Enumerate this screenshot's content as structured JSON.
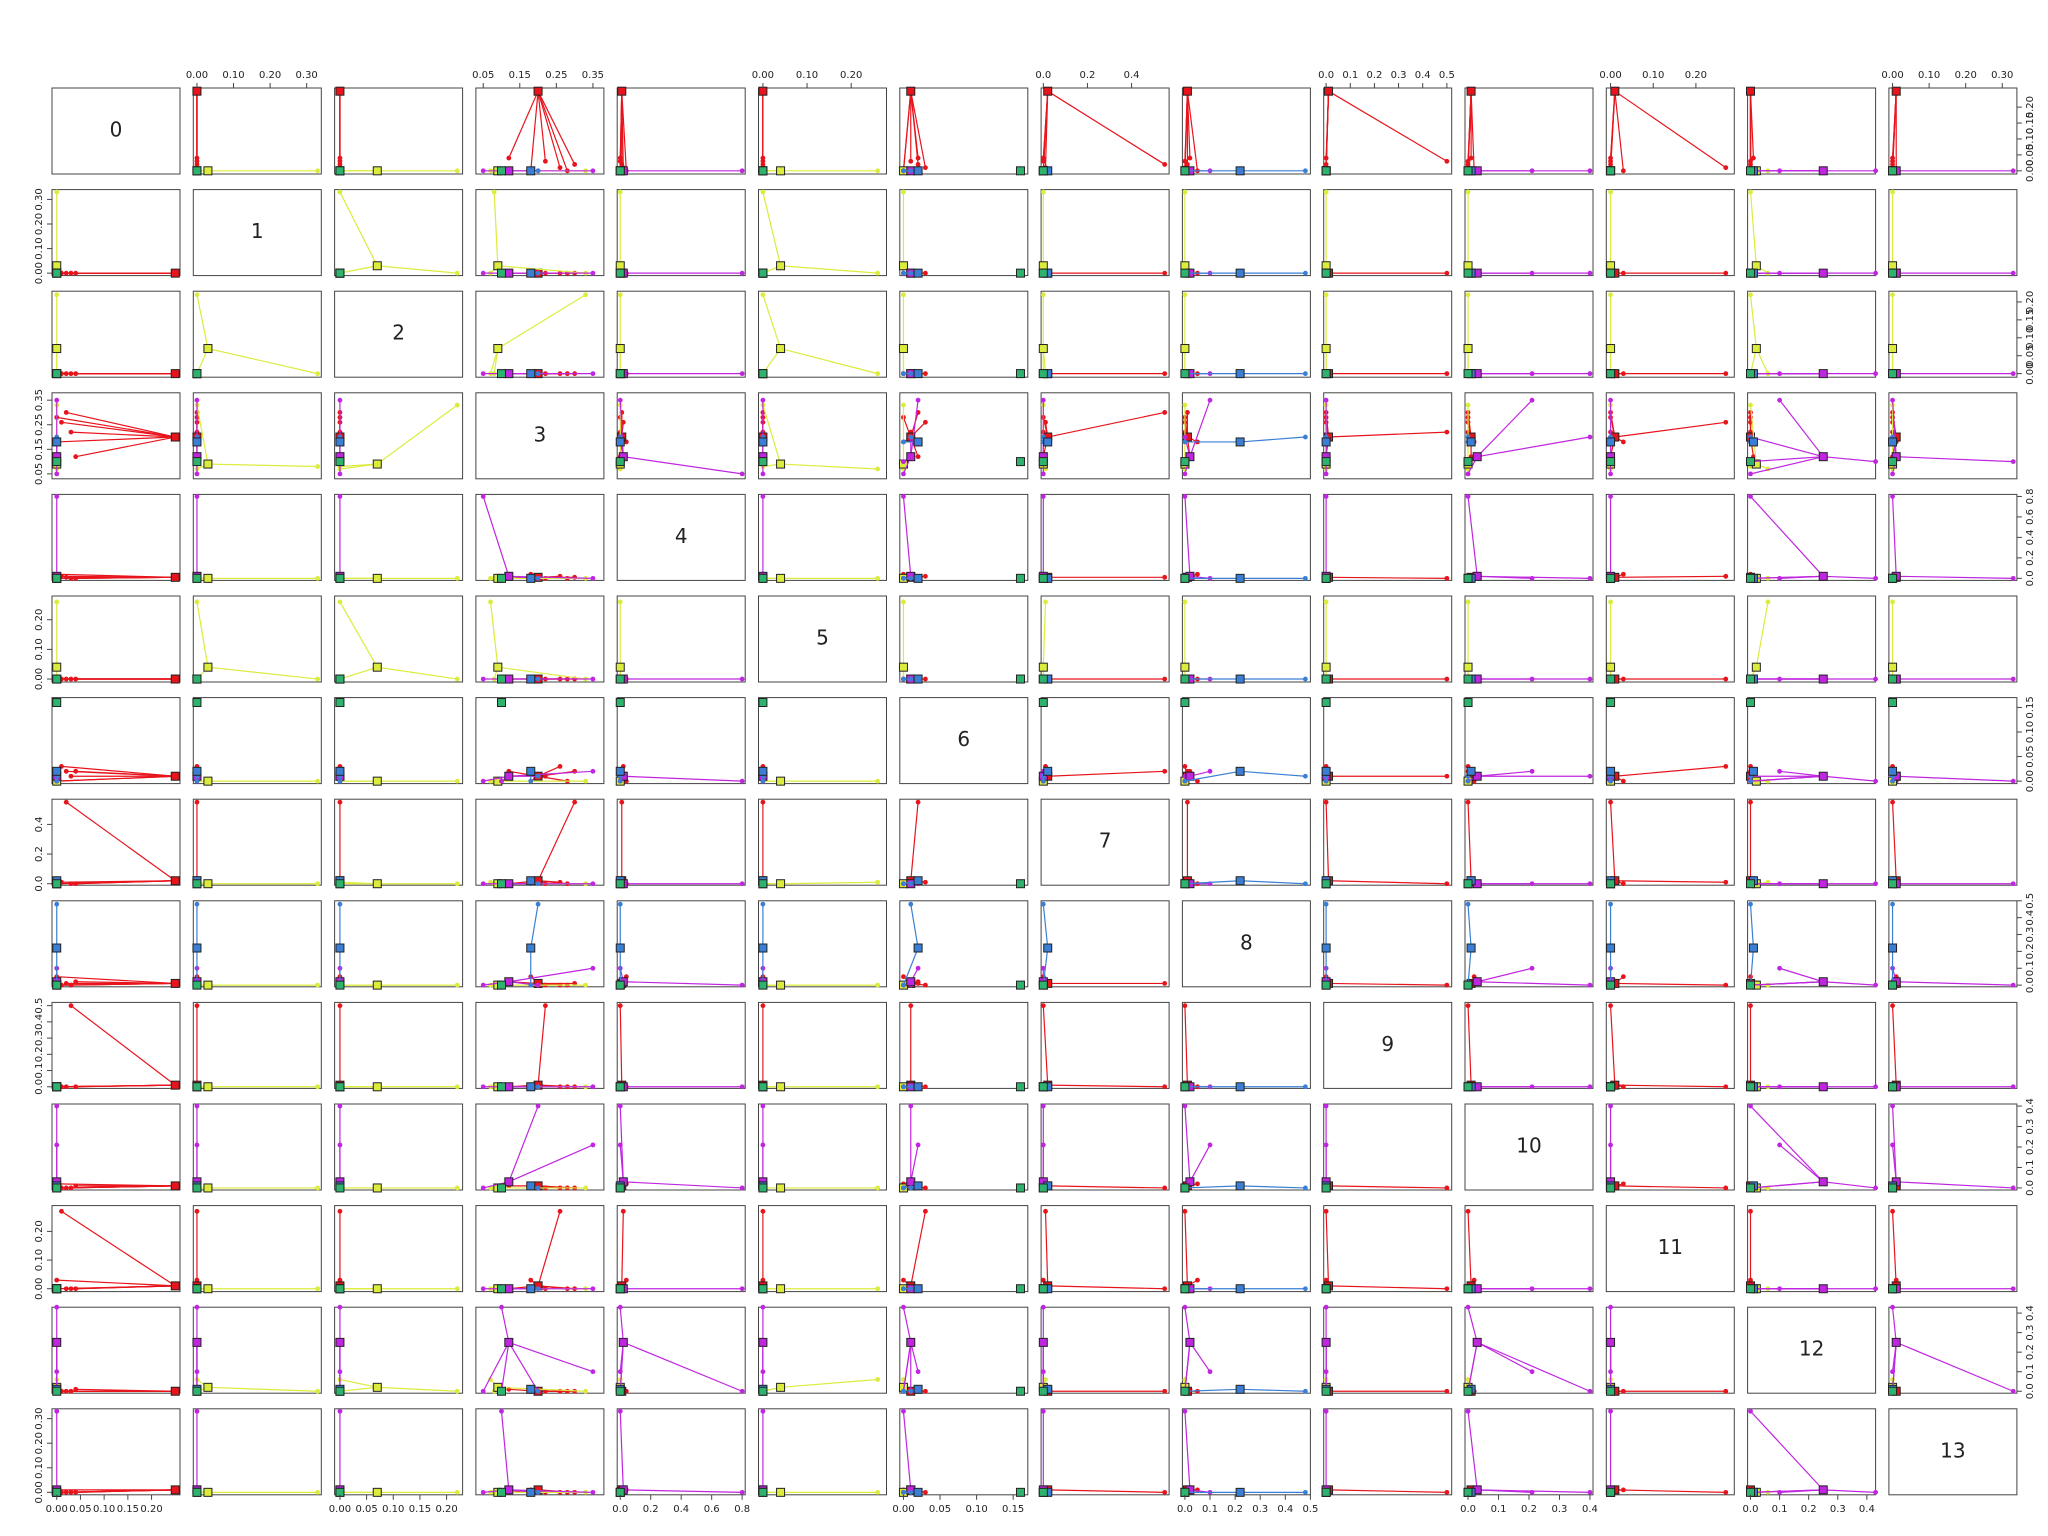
{
  "chart_data": {
    "type": "scatter-matrix",
    "variables": [
      {
        "name": "0",
        "lim": [
          -0.01,
          0.26
        ],
        "ticks": [
          {
            "value": 0,
            "label": "0.00"
          },
          {
            "value": 0.05,
            "label": "0.05"
          },
          {
            "value": 0.1,
            "label": "0.10"
          },
          {
            "value": 0.15,
            "label": "0.15"
          },
          {
            "value": 0.2,
            "label": "0.20"
          }
        ]
      },
      {
        "name": "1",
        "lim": [
          -0.01,
          0.34
        ],
        "ticks": [
          {
            "value": 0,
            "label": "0.00"
          },
          {
            "value": 0.1,
            "label": "0.10"
          },
          {
            "value": 0.2,
            "label": "0.20"
          },
          {
            "value": 0.3,
            "label": "0.30"
          }
        ]
      },
      {
        "name": "2",
        "lim": [
          -0.01,
          0.23
        ],
        "ticks": [
          {
            "value": 0,
            "label": "0.00"
          },
          {
            "value": 0.05,
            "label": "0.05"
          },
          {
            "value": 0.1,
            "label": "0.10"
          },
          {
            "value": 0.15,
            "label": "0.15"
          },
          {
            "value": 0.2,
            "label": "0.20"
          }
        ]
      },
      {
        "name": "3",
        "lim": [
          0.03,
          0.38
        ],
        "ticks": [
          0.05,
          0.15,
          0.25,
          0.35
        ]
      },
      {
        "name": "4",
        "lim": [
          -0.02,
          0.82
        ],
        "ticks": [
          {
            "value": 0,
            "label": "0.0"
          },
          0.2,
          0.4,
          0.6,
          0.8
        ]
      },
      {
        "name": "5",
        "lim": [
          -0.01,
          0.28
        ],
        "ticks": [
          {
            "value": 0,
            "label": "0.00"
          },
          {
            "value": 0.1,
            "label": "0.10"
          },
          {
            "value": 0.2,
            "label": "0.20"
          }
        ]
      },
      {
        "name": "6",
        "lim": [
          -0.005,
          0.17
        ],
        "ticks": [
          {
            "value": 0,
            "label": "0.00"
          },
          0.05,
          {
            "value": 0.1,
            "label": "0.10"
          },
          0.15
        ]
      },
      {
        "name": "7",
        "lim": [
          -0.01,
          0.57
        ],
        "ticks": [
          {
            "value": 0,
            "label": "0.0"
          },
          0.2,
          0.4
        ]
      },
      {
        "name": "8",
        "lim": [
          -0.01,
          0.5
        ],
        "ticks": [
          {
            "value": 0,
            "label": "0.0"
          },
          0.1,
          0.2,
          0.3,
          0.4,
          0.5
        ]
      },
      {
        "name": "9",
        "lim": [
          -0.01,
          0.52
        ],
        "ticks": [
          {
            "value": 0,
            "label": "0.0"
          },
          0.1,
          0.2,
          0.3,
          0.4,
          0.5
        ]
      },
      {
        "name": "10",
        "lim": [
          -0.01,
          0.41
        ],
        "ticks": [
          {
            "value": 0,
            "label": "0.0"
          },
          0.1,
          0.2,
          0.3,
          0.4
        ]
      },
      {
        "name": "11",
        "lim": [
          -0.01,
          0.29
        ],
        "ticks": [
          {
            "value": 0,
            "label": "0.00"
          },
          {
            "value": 0.1,
            "label": "0.10"
          },
          {
            "value": 0.2,
            "label": "0.20"
          }
        ]
      },
      {
        "name": "12",
        "lim": [
          -0.01,
          0.43
        ],
        "ticks": [
          {
            "value": 0,
            "label": "0.0"
          },
          0.1,
          0.2,
          0.3,
          0.4
        ]
      },
      {
        "name": "13",
        "lim": [
          -0.01,
          0.34
        ],
        "ticks": [
          {
            "value": 0,
            "label": "0.00"
          },
          {
            "value": 0.1,
            "label": "0.10"
          },
          {
            "value": 0.2,
            "label": "0.20"
          },
          {
            "value": 0.3,
            "label": "0.30"
          }
        ]
      }
    ],
    "groups": [
      {
        "color": "#e8141c",
        "centroid": [
          0.25,
          0,
          0,
          0.2,
          0.01,
          0,
          0.01,
          0.02,
          0.01,
          0.01,
          0.01,
          0.01,
          0,
          0.01
        ],
        "points": [
          [
            0.02,
            0,
            0,
            0.3,
            0.01,
            0,
            0.02,
            0.55,
            0.01,
            0,
            0,
            0,
            0,
            0
          ],
          [
            0.03,
            0,
            0,
            0.22,
            0,
            0,
            0.01,
            0,
            0,
            0.5,
            0,
            0,
            0,
            0
          ],
          [
            0.01,
            0,
            0,
            0.26,
            0.02,
            0,
            0.03,
            0.01,
            0,
            0,
            0,
            0.27,
            0,
            0
          ],
          [
            0,
            0,
            0,
            0.18,
            0.04,
            0,
            0,
            0,
            0.05,
            0,
            0.02,
            0.03,
            0,
            0.01
          ],
          [
            0.04,
            0,
            0,
            0.12,
            0,
            0,
            0.02,
            0,
            0.02,
            0,
            0.01,
            0,
            0.01,
            0
          ],
          [
            0,
            0,
            0,
            0.28,
            0,
            0,
            0,
            0,
            0,
            0,
            0,
            0,
            0,
            0
          ]
        ]
      },
      {
        "color": "#dcec3c",
        "centroid": [
          0,
          0.03,
          0.07,
          0.09,
          0,
          0.04,
          0,
          0,
          0,
          0,
          0,
          0,
          0.02,
          0
        ],
        "points": [
          [
            0,
            0.33,
            0,
            0.08,
            0,
            0,
            0,
            0,
            0,
            0,
            0,
            0,
            0,
            0
          ],
          [
            0,
            0,
            0.22,
            0.33,
            0,
            0,
            0,
            0,
            0,
            0,
            0,
            0,
            0,
            0
          ],
          [
            0,
            0,
            0,
            0.07,
            0,
            0.26,
            0,
            0.01,
            0,
            0,
            0,
            0,
            0.06,
            0
          ]
        ]
      },
      {
        "color": "#c026e0",
        "centroid": [
          0,
          0,
          0,
          0.12,
          0.02,
          0,
          0.01,
          0,
          0.02,
          0,
          0.03,
          0,
          0.25,
          0.01
        ],
        "points": [
          [
            0,
            0,
            0,
            0.05,
            0.8,
            0,
            0,
            0,
            0,
            0,
            0,
            0,
            0,
            0
          ],
          [
            0,
            0,
            0,
            0.2,
            0,
            0,
            0.01,
            0,
            0,
            0,
            0.4,
            0,
            0,
            0
          ],
          [
            0,
            0,
            0,
            0.1,
            0,
            0,
            0,
            0,
            0,
            0,
            0,
            0,
            0.43,
            0
          ],
          [
            0,
            0,
            0,
            0.35,
            0,
            0,
            0.02,
            0,
            0.1,
            0,
            0.21,
            0,
            0.1,
            0
          ],
          [
            0,
            0,
            0,
            0.1,
            0,
            0,
            0,
            0,
            0,
            0,
            0,
            0,
            0,
            0.33
          ]
        ]
      },
      {
        "color": "#3a7fd5",
        "centroid": [
          0,
          0,
          0,
          0.18,
          0,
          0,
          0.02,
          0.02,
          0.22,
          0,
          0.01,
          0,
          0.01,
          0
        ],
        "points": [
          [
            0,
            0,
            0,
            0.2,
            0,
            0,
            0.01,
            0,
            0.48,
            0,
            0,
            0,
            0,
            0
          ],
          [
            0,
            0,
            0,
            0.18,
            0,
            0,
            0,
            0,
            0,
            0,
            0,
            0,
            0,
            0
          ]
        ]
      },
      {
        "color": "#2db36e",
        "centroid": [
          0,
          0,
          0,
          0.1,
          0,
          0,
          0.16,
          0,
          0,
          0,
          0,
          0,
          0,
          0
        ],
        "points": []
      }
    ]
  }
}
